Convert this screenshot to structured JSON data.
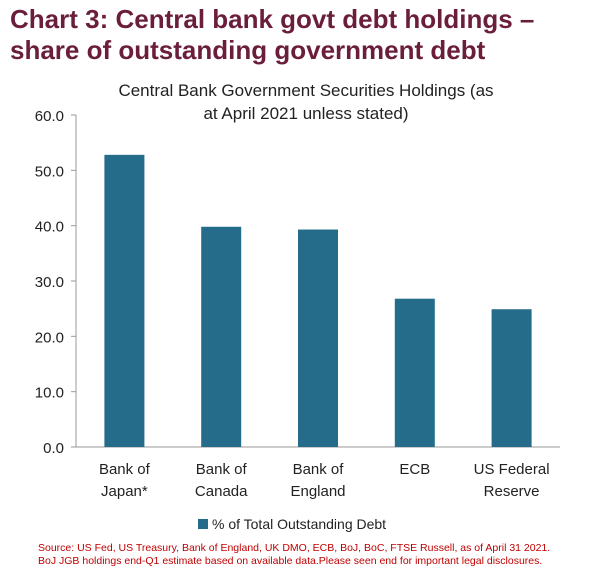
{
  "heading": {
    "line1": "Chart 3: Central bank govt debt holdings –",
    "line2": "share of outstanding government debt"
  },
  "colors": {
    "heading": "#6b1e3c",
    "bar": "#246c8a",
    "source": "#c00000",
    "axis": "#999999"
  },
  "chart_data": {
    "type": "bar",
    "title_lines": [
      "Central Bank Government Securities Holdings (as",
      "at April 2021 unless stated)"
    ],
    "categories": [
      [
        "Bank of",
        "Japan*"
      ],
      [
        "Bank of",
        "Canada"
      ],
      [
        "Bank of",
        "England"
      ],
      [
        "ECB"
      ],
      [
        "US Federal",
        "Reserve"
      ]
    ],
    "series": [
      {
        "name": "% of Total Outstanding Debt",
        "values": [
          52.8,
          39.8,
          39.3,
          26.8,
          24.9
        ]
      }
    ],
    "ylim": [
      0,
      60
    ],
    "yticks": [
      "0.0",
      "10.0",
      "20.0",
      "30.0",
      "40.0",
      "50.0",
      "60.0"
    ],
    "grid": false,
    "legend_position": "bottom"
  },
  "source": {
    "line1": "Source: US Fed, US Treasury, Bank of England, UK DMO, ECB, BoJ, BoC, FTSE Russell, as of April 31 2021.",
    "line2": "BoJ JGB holdings end-Q1 estimate based on available data.Please seen end for important legal disclosures."
  }
}
